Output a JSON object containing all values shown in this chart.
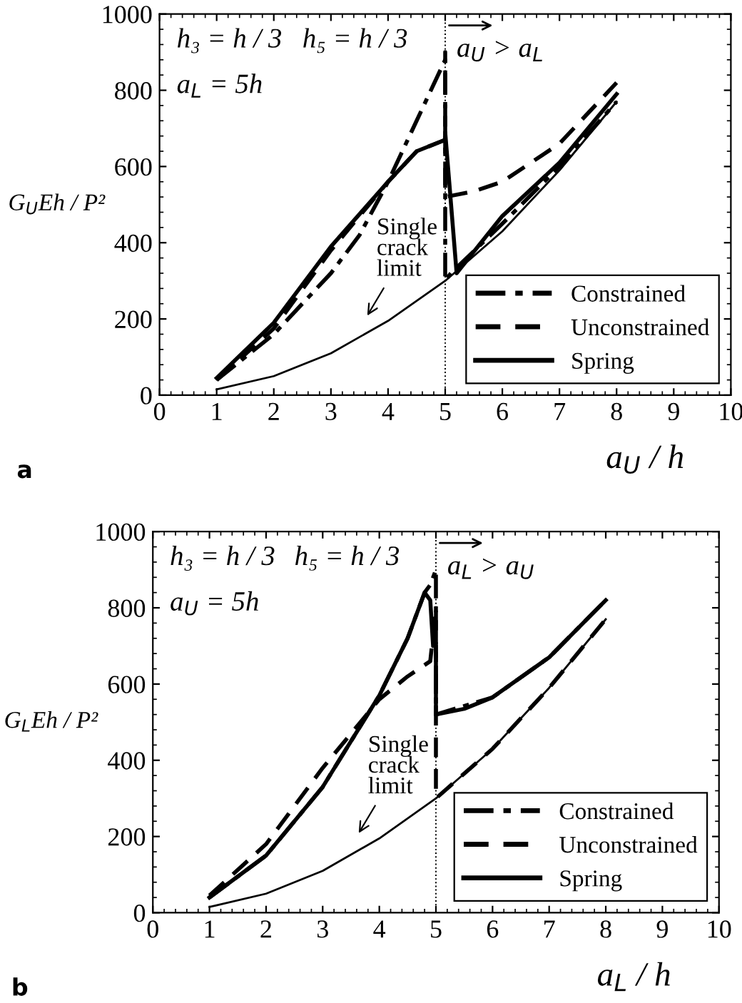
{
  "chart_data": [
    {
      "type": "line",
      "title": "a",
      "xlabel": "a$_{U}$ / h",
      "ylabel": "G$_{U}$Eh / P²",
      "xlim": [
        0,
        10
      ],
      "ylim": [
        0,
        1000
      ],
      "xticks": [
        0,
        1,
        2,
        3,
        4,
        5,
        6,
        7,
        8,
        9,
        10
      ],
      "yticks": [
        0,
        200,
        400,
        600,
        800,
        1000
      ],
      "grid": false,
      "legend": "bottom right",
      "marker": "none",
      "series": [
        {
          "name": "Constrained",
          "color": "#000000",
          "line_style": "dashdot",
          "x": [
            1,
            2,
            3,
            3.5,
            4,
            4.5,
            5,
            5,
            5.1,
            6,
            7,
            8
          ],
          "values": [
            40,
            160,
            320,
            420,
            560,
            720,
            880,
            300,
            320,
            450,
            600,
            770
          ]
        },
        {
          "name": "Unconstrained",
          "color": "#000000",
          "line_style": "dashed",
          "x": [
            1,
            2,
            3,
            4,
            4.5,
            5,
            5,
            5,
            5.5,
            6,
            7,
            8
          ],
          "values": [
            40,
            175,
            380,
            560,
            640,
            670,
            900,
            520,
            535,
            560,
            660,
            820
          ]
        },
        {
          "name": "Spring",
          "color": "#000000",
          "line_style": "solid",
          "x": [
            1,
            2,
            3,
            4,
            4.5,
            5,
            5,
            5.2,
            6,
            7,
            8
          ],
          "values": [
            45,
            190,
            390,
            560,
            640,
            670,
            690,
            320,
            470,
            610,
            790
          ]
        },
        {
          "color": "#000000",
          "line_style": "solid",
          "x": [
            1,
            2,
            3,
            4,
            5,
            6,
            7,
            8
          ],
          "values": [
            15,
            50,
            110,
            195,
            300,
            430,
            590,
            770
          ]
        }
      ],
      "ref_lines": [
        {
          "axis": "x",
          "value": 5,
          "label": "a$_{U}$ > a$_{L}$",
          "line_style": "dotted",
          "color": "#000000"
        }
      ],
      "annotations": [
        "h₃ = h / 3",
        "h₅ = h / 3",
        "a$_{L}$ = 5h",
        "Single\ncrack\nlimit"
      ]
    },
    {
      "type": "line",
      "title": "b",
      "xlabel": "a$_{L}$ / h",
      "ylabel": "G$_{L}$Eh / P²",
      "xlim": [
        0,
        10
      ],
      "ylim": [
        0,
        1000
      ],
      "xticks": [
        0,
        1,
        2,
        3,
        4,
        5,
        6,
        7,
        8,
        9,
        10
      ],
      "yticks": [
        0,
        200,
        400,
        600,
        800,
        1000
      ],
      "grid": false,
      "legend": "bottom right",
      "marker": "none",
      "series": [
        {
          "name": "Constrained",
          "color": "#000000",
          "line_style": "dashdot",
          "x": [
            1,
            2,
            3,
            4,
            4.5,
            4.8,
            4.9,
            5,
            5,
            6,
            7,
            8
          ],
          "values": [
            40,
            150,
            330,
            570,
            720,
            840,
            860,
            900,
            520,
            565,
            670,
            820
          ]
        },
        {
          "name": "Unconstrained",
          "color": "#000000",
          "line_style": "dashed",
          "x": [
            1,
            2,
            3,
            4,
            4.5,
            4.9,
            5,
            5,
            6,
            7,
            8
          ],
          "values": [
            45,
            180,
            380,
            560,
            620,
            660,
            800,
            300,
            430,
            590,
            770
          ]
        },
        {
          "name": "Spring",
          "color": "#000000",
          "line_style": "solid",
          "x": [
            1,
            2,
            3,
            4,
            4.5,
            4.8,
            4.9,
            4.95,
            5,
            5,
            5.5,
            6,
            7,
            8
          ],
          "values": [
            40,
            150,
            330,
            570,
            720,
            840,
            820,
            700,
            700,
            520,
            535,
            565,
            670,
            820
          ]
        },
        {
          "color": "#000000",
          "line_style": "solid",
          "x": [
            1,
            2,
            3,
            4,
            5,
            6,
            7,
            8
          ],
          "values": [
            15,
            50,
            110,
            195,
            300,
            430,
            590,
            770
          ]
        }
      ],
      "ref_lines": [
        {
          "axis": "x",
          "value": 5,
          "label": "a$_{L}$ > a$_{U}$",
          "line_style": "dotted",
          "color": "#000000"
        }
      ],
      "annotations": [
        "h₃ = h / 3",
        "h₅ = h / 3",
        "a$_{U}$ = 5h",
        "Single\ncrack\nlimit"
      ]
    }
  ]
}
